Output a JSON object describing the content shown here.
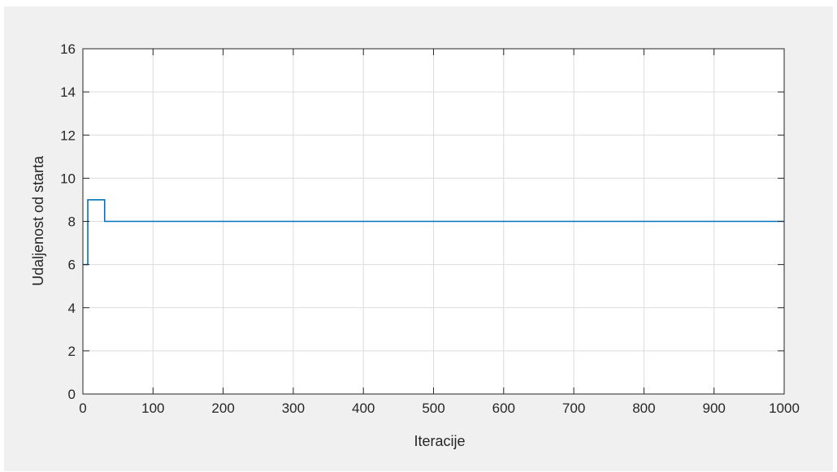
{
  "chart_data": {
    "type": "line",
    "title": "",
    "xlabel": "Iteracije",
    "ylabel": "Udaljenost od starta",
    "xlim": [
      0,
      1000
    ],
    "ylim": [
      0,
      16
    ],
    "xticks": [
      0,
      100,
      200,
      300,
      400,
      500,
      600,
      700,
      800,
      900,
      1000
    ],
    "yticks": [
      0,
      2,
      4,
      6,
      8,
      10,
      12,
      14,
      16
    ],
    "grid": true,
    "series": [
      {
        "color": "#0072bd",
        "line_style": "step",
        "x": [
          0,
          7,
          7,
          31,
          31,
          1000
        ],
        "y": [
          6,
          6,
          9,
          9,
          8,
          8
        ]
      }
    ]
  },
  "colors": {
    "figure_background": "#f0f0f0",
    "axes_background": "#ffffff",
    "axis_line": "#262626",
    "grid": "#dcdcdc",
    "line": "#0072bd"
  }
}
